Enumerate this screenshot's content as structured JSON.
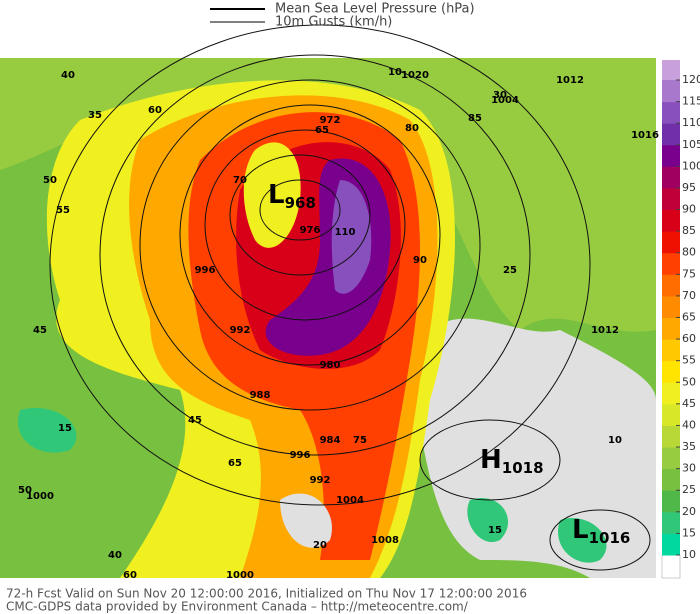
{
  "legend": {
    "items": [
      {
        "label": "Mean Sea Level Pressure (hPa)"
      },
      {
        "label": "10m Gusts (km/h)"
      }
    ]
  },
  "colorbar": {
    "ticks": [
      10,
      15,
      20,
      25,
      30,
      35,
      40,
      45,
      50,
      55,
      60,
      65,
      70,
      75,
      80,
      85,
      90,
      95,
      100,
      105,
      110,
      115,
      120
    ],
    "below_color": "#ffffff",
    "band_colors": [
      "#00d8a0",
      "#30c878",
      "#50b848",
      "#78c040",
      "#98cc40",
      "#b8d838",
      "#d8e828",
      "#f0f020",
      "#ffe400",
      "#ffc800",
      "#ffa800",
      "#ff8c00",
      "#ff6c00",
      "#ff4000",
      "#ee1000",
      "#d80018",
      "#c00038",
      "#a00060",
      "#78008c",
      "#7030a8",
      "#8850bc",
      "#a878cc"
    ],
    "above_color": "#c8a0dc"
  },
  "centers": [
    {
      "letter": "L",
      "value": "968"
    },
    {
      "letter": "H",
      "value": "1018"
    },
    {
      "letter": "L",
      "value": "1016"
    }
  ],
  "isobar_labels": [
    "1000",
    "996",
    "992",
    "988",
    "984",
    "980",
    "976",
    "972",
    "1004",
    "1008",
    "1012",
    "1016",
    "1000",
    "996",
    "992",
    "1004",
    "1012",
    "1020"
  ],
  "gust_labels": [
    "40",
    "35",
    "50",
    "55",
    "60",
    "65",
    "70",
    "75",
    "80",
    "85",
    "90",
    "110",
    "45",
    "30",
    "25",
    "20",
    "15",
    "10",
    "50",
    "40",
    "65",
    "60",
    "45",
    "15",
    "10"
  ],
  "footer": {
    "line1": "72-h Fcst Valid on Sun Nov 20 12:00:00 2016, Initialized on Thu Nov 17 12:00:00 2016",
    "line2": "CMC-GDPS data provided by Environment Canada – http://meteocentre.com/"
  }
}
